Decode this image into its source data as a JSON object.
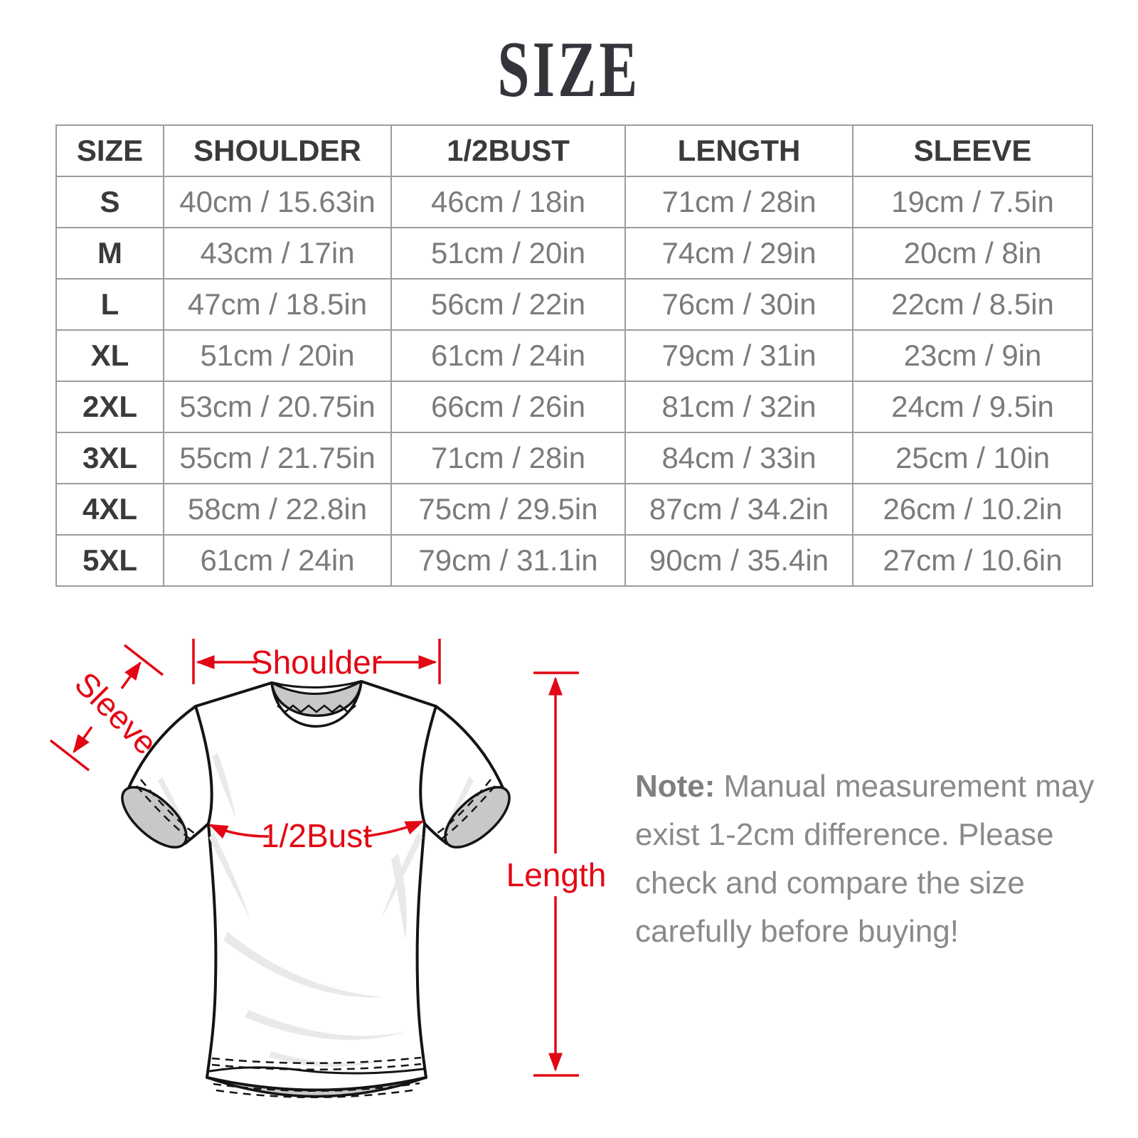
{
  "title": "SIZE",
  "table": {
    "headers": [
      "SIZE",
      "SHOULDER",
      "1/2BUST",
      "LENGTH",
      "SLEEVE"
    ],
    "rows": [
      [
        "S",
        "40cm / 15.63in",
        "46cm / 18in",
        "71cm / 28in",
        "19cm / 7.5in"
      ],
      [
        "M",
        "43cm / 17in",
        "51cm / 20in",
        "74cm / 29in",
        "20cm / 8in"
      ],
      [
        "L",
        "47cm / 18.5in",
        "56cm / 22in",
        "76cm / 30in",
        "22cm / 8.5in"
      ],
      [
        "XL",
        "51cm / 20in",
        "61cm / 24in",
        "79cm / 31in",
        "23cm / 9in"
      ],
      [
        "2XL",
        "53cm / 20.75in",
        "66cm / 26in",
        "81cm / 32in",
        "24cm / 9.5in"
      ],
      [
        "3XL",
        "55cm / 21.75in",
        "71cm / 28in",
        "84cm / 33in",
        "25cm / 10in"
      ],
      [
        "4XL",
        "58cm / 22.8in",
        "75cm / 29.5in",
        "87cm / 34.2in",
        "26cm / 10.2in"
      ],
      [
        "5XL",
        "61cm / 24in",
        "79cm / 31.1in",
        "90cm / 35.4in",
        "27cm / 10.6in"
      ]
    ]
  },
  "diagram": {
    "labels": {
      "shoulder": "Shoulder",
      "sleeve": "Sleeve",
      "bust": "1/2Bust",
      "length": "Length"
    },
    "accent_color": "#e30614"
  },
  "note": {
    "label": "Note:",
    "lines": [
      "Manual measurement may",
      "exist 1-2cm difference. Please",
      "check and compare the size",
      "carefully before buying!"
    ]
  }
}
